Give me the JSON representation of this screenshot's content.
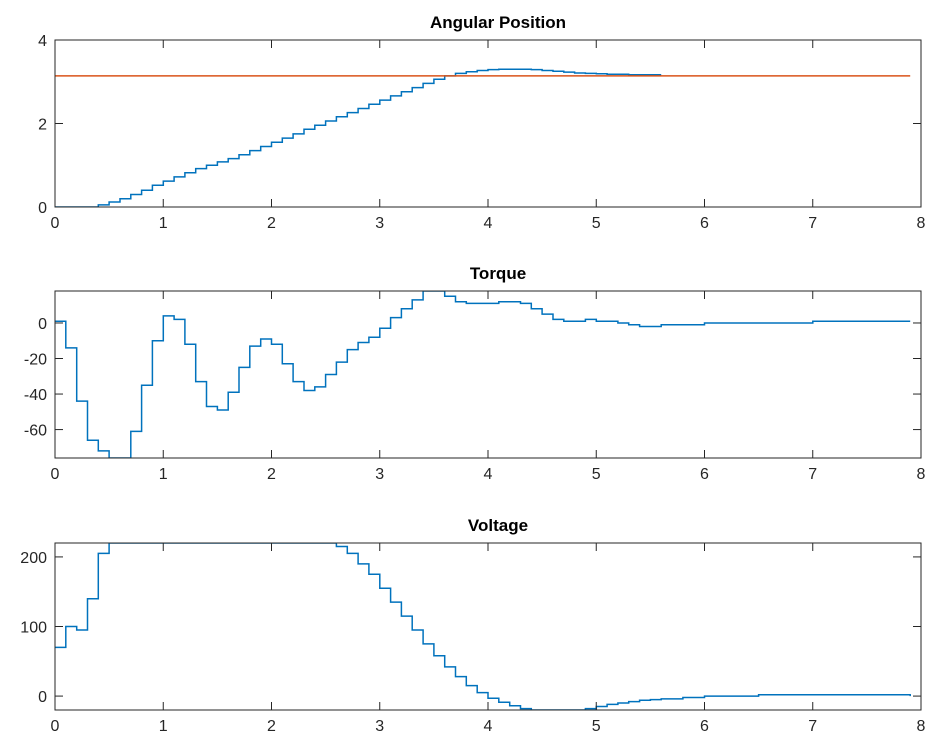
{
  "colors": {
    "series_blue": "#0072BD",
    "series_orange": "#D95319",
    "axes": "#262626"
  },
  "chart_data": [
    {
      "type": "line",
      "title": "Angular Position",
      "xlim": [
        0,
        8
      ],
      "ylim": [
        0,
        4
      ],
      "xticks": [
        0,
        1,
        2,
        3,
        4,
        5,
        6,
        7,
        8
      ],
      "yticks": [
        0,
        2,
        4
      ],
      "grid": false,
      "series": [
        {
          "color": "#0072BD",
          "step": true,
          "x": [
            0,
            0.1,
            0.2,
            0.3,
            0.4,
            0.5,
            0.6,
            0.7,
            0.8,
            0.9,
            1.0,
            1.1,
            1.2,
            1.3,
            1.4,
            1.5,
            1.6,
            1.7,
            1.8,
            1.9,
            2.0,
            2.1,
            2.2,
            2.3,
            2.4,
            2.5,
            2.6,
            2.7,
            2.8,
            2.9,
            3.0,
            3.1,
            3.2,
            3.3,
            3.4,
            3.5,
            3.6,
            3.7,
            3.8,
            3.9,
            4.0,
            4.1,
            4.2,
            4.3,
            4.4,
            4.5,
            4.6,
            4.7,
            4.8,
            4.9,
            5.0,
            5.1,
            5.2,
            5.3,
            5.4,
            5.5,
            5.6
          ],
          "y": [
            0,
            0,
            0,
            0,
            0.05,
            0.12,
            0.2,
            0.3,
            0.4,
            0.52,
            0.62,
            0.72,
            0.82,
            0.92,
            1.0,
            1.08,
            1.16,
            1.25,
            1.35,
            1.45,
            1.55,
            1.65,
            1.75,
            1.86,
            1.96,
            2.06,
            2.16,
            2.26,
            2.36,
            2.46,
            2.56,
            2.66,
            2.76,
            2.86,
            2.96,
            3.06,
            3.14,
            3.2,
            3.24,
            3.27,
            3.29,
            3.3,
            3.3,
            3.3,
            3.29,
            3.27,
            3.25,
            3.23,
            3.21,
            3.2,
            3.19,
            3.18,
            3.18,
            3.17,
            3.17,
            3.17,
            3.17
          ]
        },
        {
          "color": "#D95319",
          "step": false,
          "x": [
            0,
            7.9
          ],
          "y": [
            3.14,
            3.14
          ]
        }
      ]
    },
    {
      "type": "line",
      "title": "Torque",
      "xlim": [
        0,
        8
      ],
      "ylim": [
        -76,
        18
      ],
      "xticks": [
        0,
        1,
        2,
        3,
        4,
        5,
        6,
        7,
        8
      ],
      "yticks": [
        0,
        -20,
        -40,
        -60
      ],
      "grid": false,
      "series": [
        {
          "color": "#0072BD",
          "step": true,
          "x": [
            0,
            0.1,
            0.2,
            0.3,
            0.4,
            0.5,
            0.6,
            0.7,
            0.8,
            0.9,
            1.0,
            1.1,
            1.2,
            1.3,
            1.4,
            1.5,
            1.6,
            1.7,
            1.8,
            1.9,
            2.0,
            2.1,
            2.2,
            2.3,
            2.4,
            2.5,
            2.6,
            2.7,
            2.8,
            2.9,
            3.0,
            3.1,
            3.2,
            3.3,
            3.4,
            3.5,
            3.6,
            3.7,
            3.8,
            3.9,
            4.0,
            4.1,
            4.2,
            4.3,
            4.4,
            4.5,
            4.6,
            4.7,
            4.8,
            4.9,
            5.0,
            5.1,
            5.2,
            5.3,
            5.4,
            5.5,
            5.6,
            6.0,
            6.5,
            7.0,
            7.5,
            7.9
          ],
          "y": [
            1,
            -14,
            -44,
            -66,
            -72,
            -76,
            -76,
            -61,
            -35,
            -10,
            4,
            2,
            -12,
            -33,
            -47,
            -49,
            -39,
            -25,
            -13,
            -9,
            -12,
            -23,
            -33,
            -38,
            -36,
            -29,
            -22,
            -15,
            -11,
            -8,
            -3,
            3,
            8,
            13,
            18,
            18,
            15,
            12,
            11,
            11,
            11,
            12,
            12,
            11,
            8,
            5,
            2,
            1,
            1,
            2,
            1,
            1,
            0,
            -1,
            -2,
            -2,
            -1,
            0,
            0,
            1,
            1,
            1
          ]
        }
      ]
    },
    {
      "type": "line",
      "title": "Voltage",
      "xlim": [
        0,
        8
      ],
      "ylim": [
        -20,
        220
      ],
      "xticks": [
        0,
        1,
        2,
        3,
        4,
        5,
        6,
        7,
        8
      ],
      "yticks": [
        0,
        100,
        200
      ],
      "grid": false,
      "series": [
        {
          "color": "#0072BD",
          "step": true,
          "x": [
            0,
            0.1,
            0.2,
            0.3,
            0.4,
            0.5,
            1.0,
            2.0,
            2.5,
            2.6,
            2.7,
            2.8,
            2.9,
            3.0,
            3.1,
            3.2,
            3.3,
            3.4,
            3.5,
            3.6,
            3.7,
            3.8,
            3.9,
            4.0,
            4.1,
            4.2,
            4.3,
            4.4,
            4.5,
            4.6,
            4.7,
            4.8,
            4.9,
            5.0,
            5.1,
            5.2,
            5.3,
            5.4,
            5.5,
            5.6,
            5.8,
            6.0,
            6.5,
            7.0,
            7.5,
            7.9
          ],
          "y": [
            70,
            100,
            95,
            140,
            205,
            220,
            220,
            220,
            220,
            215,
            205,
            190,
            175,
            155,
            135,
            115,
            95,
            75,
            58,
            42,
            28,
            15,
            5,
            -3,
            -9,
            -14,
            -18,
            -20,
            -20,
            -20,
            -20,
            -20,
            -18,
            -15,
            -12,
            -10,
            -8,
            -6,
            -5,
            -4,
            -2,
            0,
            2,
            2,
            2,
            0
          ]
        }
      ]
    }
  ]
}
